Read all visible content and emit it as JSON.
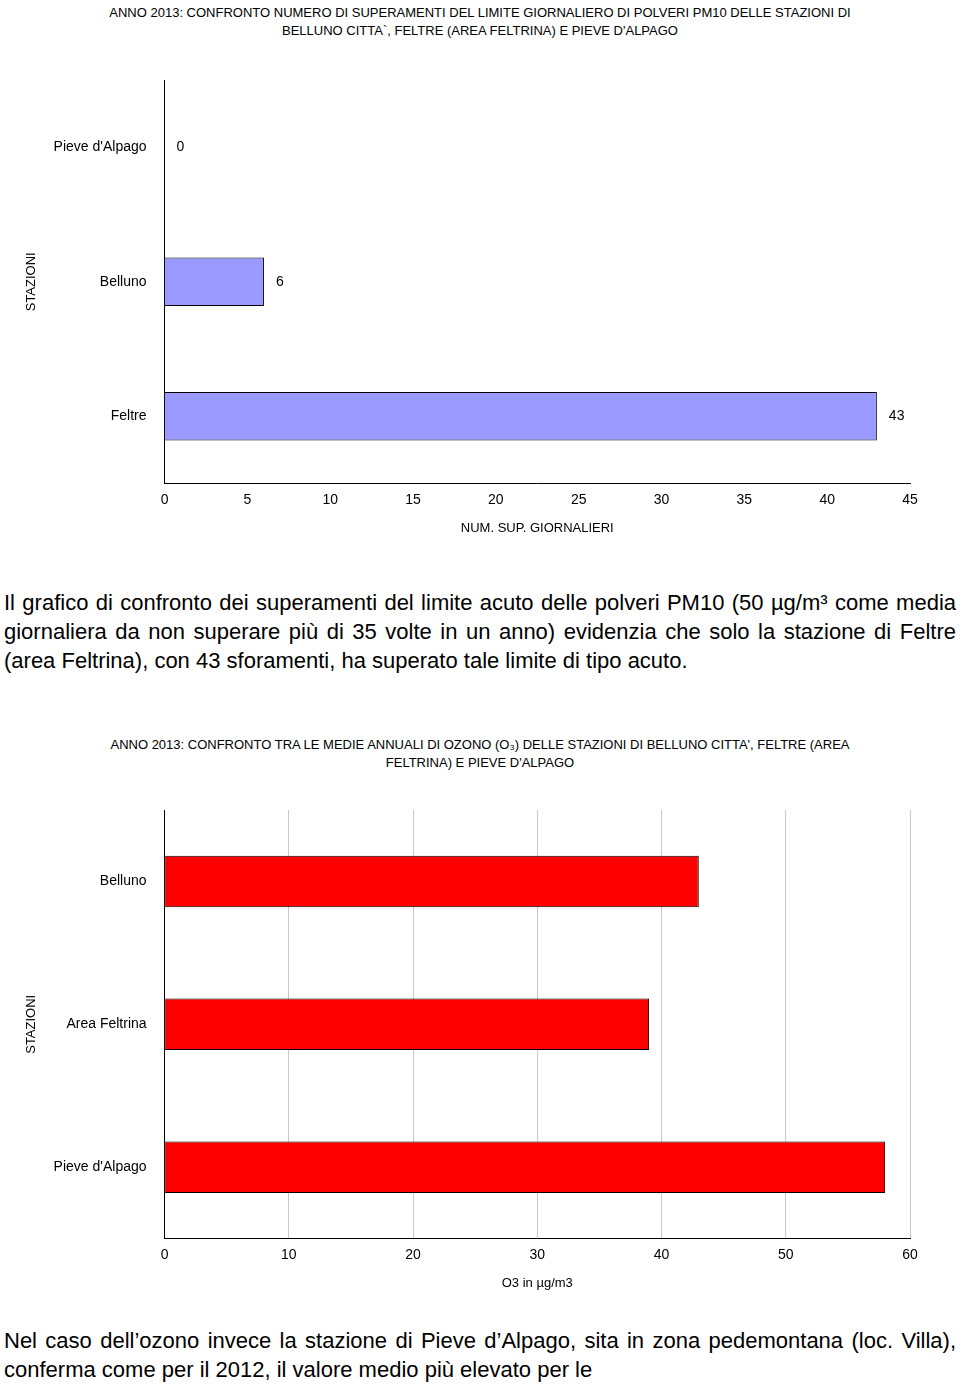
{
  "chart_data": [
    {
      "type": "bar",
      "orientation": "horizontal",
      "title": "ANNO 2013: CONFRONTO NUMERO DI SUPERAMENTI DEL LIMITE GIORNALIERO DI POLVERI PM10 DELLE STAZIONI DI BELLUNO CITTA`, FELTRE (AREA FELTRINA) E PIEVE D'ALPAGO",
      "xlabel": "NUM. SUP. GIORNALIERI",
      "ylabel": "STAZIONI",
      "categories": [
        "Pieve d'Alpago",
        "Belluno",
        "Feltre"
      ],
      "values": [
        0,
        6,
        43
      ],
      "color": "#9999ff",
      "xlim": [
        0,
        45
      ],
      "xticks": [
        0,
        5,
        10,
        15,
        20,
        25,
        30,
        35,
        40,
        45
      ],
      "grid": false,
      "data_labels": true
    },
    {
      "type": "bar",
      "orientation": "horizontal",
      "title": "ANNO 2013: CONFRONTO TRA LE MEDIE ANNUALI DI OZONO (O₃) DELLE STAZIONI DI BELLUNO CITTA', FELTRE (AREA FELTRINA) E PIEVE D'ALPAGO",
      "xlabel": "O3 in µg/m3",
      "ylabel": "STAZIONI",
      "categories": [
        "Belluno",
        "Area Feltrina",
        "Pieve d'Alpago"
      ],
      "values": [
        43,
        39,
        58
      ],
      "color": "#ff0000",
      "xlim": [
        0,
        60
      ],
      "xticks": [
        0,
        10,
        20,
        30,
        40,
        50,
        60
      ],
      "grid": true,
      "data_labels": false
    }
  ],
  "text": {
    "paragraph1": "Il grafico di confronto dei superamenti del limite acuto delle polveri PM10 (50 µg/m³ come media giornaliera da non superare più di 35 volte in un anno) evidenzia che solo la stazione di Feltre (area Feltrina), con 43 sforamenti, ha superato tale limite di tipo acuto.",
    "paragraph2": "Nel caso dell’ozono invece la stazione di Pieve d’Alpago, sita in zona pedemontana (loc. Villa), conferma come per il 2012, il valore medio più elevato per le"
  }
}
